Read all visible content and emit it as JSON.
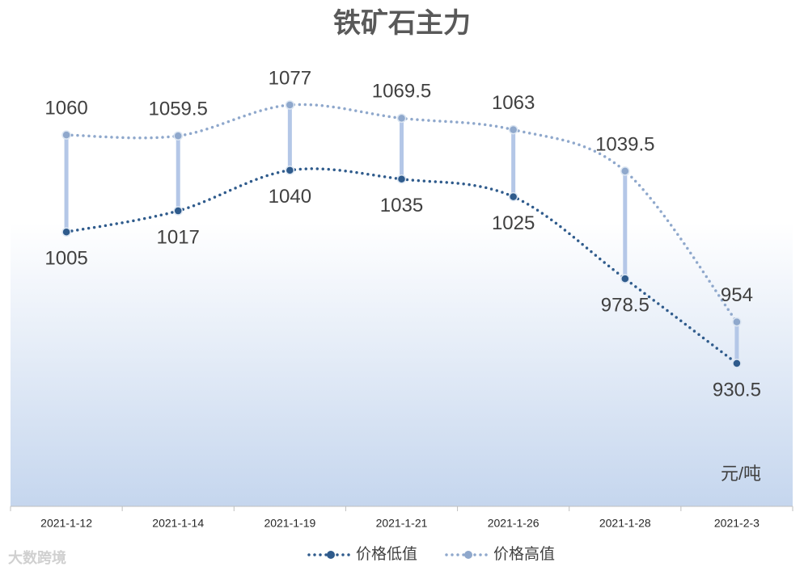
{
  "chart_data": {
    "type": "line",
    "title": "铁矿石主力",
    "unit": "元/吨",
    "watermark": "大数跨境",
    "categories": [
      "2021-1-12",
      "2021-1-14",
      "2021-1-19",
      "2021-1-21",
      "2021-1-26",
      "2021-1-28",
      "2021-2-3"
    ],
    "series": [
      {
        "name": "价格低值",
        "color": "#2f5b8c",
        "values": [
          1005,
          1017,
          1040,
          1035,
          1025,
          978.5,
          930.5
        ]
      },
      {
        "name": "价格高值",
        "color": "#8fa8cc",
        "values": [
          1060,
          1059.5,
          1077,
          1069.5,
          1063,
          1039.5,
          954
        ]
      }
    ],
    "bar_color": "#b4c7e7"
  }
}
